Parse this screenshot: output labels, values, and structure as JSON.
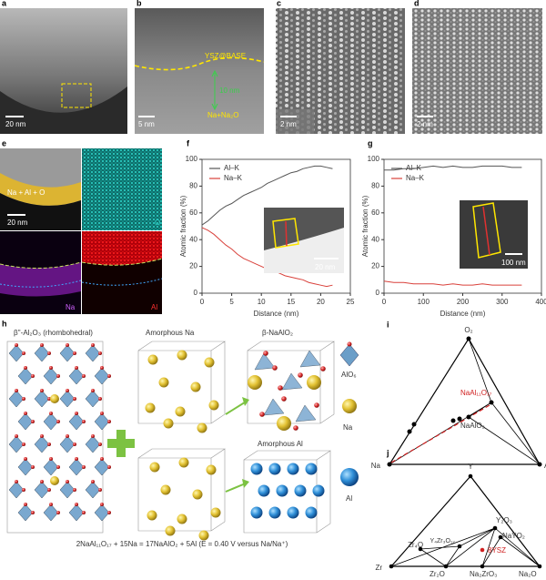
{
  "panels": {
    "a": {
      "label": "a",
      "scale": "20 nm"
    },
    "b": {
      "label": "b",
      "scale": "5 nm",
      "interface": "YSZ@BASE",
      "thickness": "10 nm",
      "phase": "Na+Na₂O"
    },
    "c": {
      "label": "c",
      "scale": "2 nm"
    },
    "d": {
      "label": "d",
      "scale": "2 nm"
    },
    "e": {
      "label": "e",
      "overlay": "Na + Al + O",
      "scale": "20 nm",
      "maps": [
        "O",
        "Na",
        "Al"
      ]
    },
    "f": {
      "label": "f",
      "inset_scale": "20 nm"
    },
    "g": {
      "label": "g",
      "inset_scale": "100 nm"
    },
    "h": {
      "label": "h",
      "titles": [
        "β''-Al₂O₃ (rhombohedral)",
        "Amorphous Na",
        "β-NaAlO₂",
        "Amorphous Al"
      ],
      "legend": [
        "AlO₆",
        "Na",
        "Al"
      ],
      "equation": "2NaAl₁₁O₁₇ + 15Na = 17NaAlO₂ + 5Al (E = 0.40 V versus Na/Na⁺)"
    },
    "i": {
      "label": "i",
      "vertices": [
        "O₂",
        "Na",
        "Al"
      ],
      "phases": [
        "NaAl₁₁O₁₇",
        "NaAlO₂"
      ]
    },
    "j": {
      "label": "j",
      "vertices": [
        "Y",
        "Zr",
        "Na₂O"
      ],
      "phases": [
        "Y₂O₃",
        "NaYO₂",
        "Y₄Zr₃O₁₂",
        "8YSZ",
        "Zr₄O",
        "Zr₂O",
        "Na₂ZrO₃"
      ]
    }
  },
  "chart_data": [
    {
      "type": "line",
      "xlabel": "Distance (nm)",
      "ylabel": "Atomic fraction (%)",
      "x": [
        0,
        1,
        2,
        3,
        4,
        5,
        6,
        7,
        8,
        9,
        10,
        11,
        12,
        13,
        14,
        15,
        16,
        17,
        18,
        19,
        20,
        21,
        22
      ],
      "series": [
        {
          "name": "Al–K",
          "color": "#555555",
          "values": [
            51,
            54,
            58,
            62,
            65,
            67,
            70,
            73,
            75,
            77,
            79,
            82,
            84,
            86,
            88,
            90,
            91,
            93,
            94,
            95,
            95,
            94,
            93
          ]
        },
        {
          "name": "Na–K",
          "color": "#d9413b",
          "values": [
            49,
            47,
            44,
            40,
            36,
            33,
            29,
            26,
            24,
            22,
            20,
            18,
            17,
            15,
            13,
            12,
            11,
            10,
            8,
            7,
            6,
            5,
            6
          ]
        }
      ],
      "xlim": [
        0,
        25
      ],
      "ylim": [
        0,
        100
      ],
      "xticks": [
        0,
        5,
        10,
        15,
        20,
        25
      ],
      "yticks": [
        0,
        20,
        40,
        60,
        80,
        100
      ],
      "legend": "upper left"
    },
    {
      "type": "line",
      "xlabel": "Distance (nm)",
      "ylabel": "Atomic fraction (%)",
      "x": [
        0,
        25,
        50,
        75,
        100,
        125,
        150,
        175,
        200,
        225,
        250,
        275,
        300,
        325,
        350
      ],
      "series": [
        {
          "name": "Al–K",
          "color": "#555555",
          "values": [
            92,
            92,
            93,
            93,
            94,
            95,
            94,
            95,
            94,
            94,
            95,
            95,
            95,
            94,
            94
          ]
        },
        {
          "name": "Na–K",
          "color": "#d9413b",
          "values": [
            9,
            8,
            8,
            7,
            7,
            7,
            6,
            7,
            6,
            6,
            7,
            6,
            6,
            6,
            6
          ]
        }
      ],
      "xlim": [
        0,
        400
      ],
      "ylim": [
        0,
        100
      ],
      "xticks": [
        0,
        100,
        200,
        300,
        400
      ],
      "yticks": [
        0,
        20,
        40,
        60,
        80,
        100
      ],
      "legend": "upper left"
    }
  ]
}
